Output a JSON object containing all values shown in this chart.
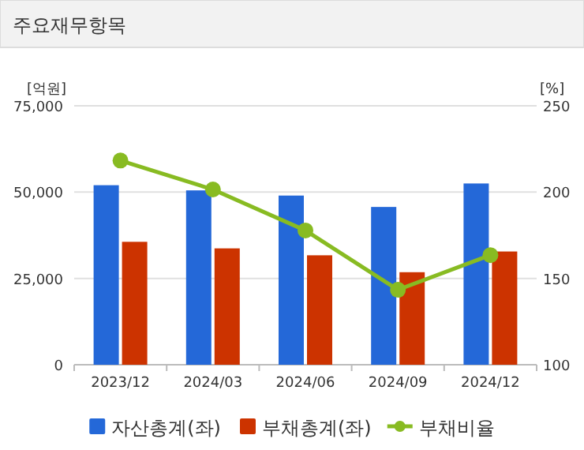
{
  "chart_data": {
    "type": "bar",
    "title": "주요재무항목",
    "ylabel": "[억원]",
    "y2label": "[%]",
    "categories": [
      "2023/12",
      "2024/03",
      "2024/06",
      "2024/09",
      "2024/12"
    ],
    "series": [
      {
        "name": "자산총계(좌)",
        "color": "#2468d8",
        "values": [
          52000,
          50500,
          49000,
          45700,
          52500
        ]
      },
      {
        "name": "부채총계(좌)",
        "color": "#cc3300",
        "values": [
          35600,
          33700,
          31700,
          26800,
          32800
        ]
      },
      {
        "name": "부채비율",
        "type": "line",
        "axis": "y2",
        "marker": "circle",
        "color": "#88bb22",
        "values": [
          218.3,
          201.5,
          177.8,
          143.4,
          163.5
        ]
      }
    ],
    "ylim": [
      0,
      75000
    ],
    "yticks": [
      {
        "value": 0,
        "label": "0"
      },
      {
        "value": 25000,
        "label": "25,000"
      },
      {
        "value": 50000,
        "label": "50,000"
      },
      {
        "value": 75000,
        "label": "75,000"
      }
    ],
    "y2lim": [
      100,
      250
    ],
    "y2ticks": [
      100,
      150,
      200,
      250
    ],
    "grid": "y",
    "legend": "bottom"
  }
}
